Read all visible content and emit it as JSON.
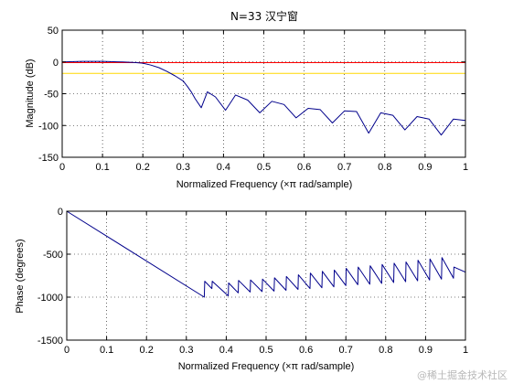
{
  "colors": {
    "response": "#00008b",
    "reference_red": "#ff0000",
    "reference_yellow": "#ffd700",
    "axes": "#000000",
    "grid": "#000000",
    "background": "#ffffff"
  },
  "watermark": "@稀土掘金技术社区",
  "chart_data": [
    {
      "type": "line",
      "title": "N=33 汉宁窗",
      "xlabel": "Normalized Frequency  (×π rad/sample)",
      "ylabel": "Magnitude (dB)",
      "xlim": [
        0,
        1
      ],
      "ylim": [
        -150,
        50
      ],
      "xticks": [
        0,
        0.1,
        0.2,
        0.3,
        0.4,
        0.5,
        0.6,
        0.7,
        0.8,
        0.9,
        1
      ],
      "xtick_labels": [
        "0",
        "0.1",
        "0.2",
        "0.3",
        "0.4",
        "0.5",
        "0.6",
        "0.7",
        "0.8",
        "0.9",
        "1"
      ],
      "yticks": [
        -150,
        -100,
        -50,
        0,
        50
      ],
      "ytick_labels": [
        "-150",
        "-100",
        "-50",
        "0",
        "50"
      ],
      "grid": true,
      "reference_lines": [
        {
          "y": -1,
          "color": "red"
        },
        {
          "y": -18,
          "color": "yellow"
        }
      ],
      "series": [
        {
          "x": [
            0,
            0.05,
            0.1,
            0.15,
            0.18,
            0.2,
            0.22,
            0.24,
            0.26,
            0.28,
            0.3,
            0.31,
            0.32,
            0.33,
            0.345,
            0.36,
            0.38,
            0.405,
            0.43,
            0.46,
            0.49,
            0.52,
            0.55,
            0.58,
            0.61,
            0.64,
            0.67,
            0.7,
            0.73,
            0.76,
            0.79,
            0.82,
            0.85,
            0.88,
            0.91,
            0.94,
            0.97,
            1.0
          ],
          "y": [
            0,
            1,
            1,
            0,
            -1,
            -2,
            -5,
            -9,
            -15,
            -22,
            -30,
            -38,
            -47,
            -58,
            -72,
            -47,
            -55,
            -76,
            -52,
            -60,
            -80,
            -62,
            -67,
            -88,
            -73,
            -75,
            -96,
            -77,
            -78,
            -112,
            -80,
            -84,
            -107,
            -86,
            -90,
            -115,
            -90,
            -92
          ]
        }
      ]
    },
    {
      "type": "line",
      "title": "",
      "xlabel": "Normalized Frequency  (×π rad/sample)",
      "ylabel": "Phase (degrees)",
      "xlim": [
        0,
        1
      ],
      "ylim": [
        -1500,
        0
      ],
      "xticks": [
        0,
        0.1,
        0.2,
        0.3,
        0.4,
        0.5,
        0.6,
        0.7,
        0.8,
        0.9,
        1
      ],
      "xtick_labels": [
        "0",
        "0.1",
        "0.2",
        "0.3",
        "0.4",
        "0.5",
        "0.6",
        "0.7",
        "0.8",
        "0.9",
        "1"
      ],
      "yticks": [
        -1500,
        -1000,
        -500,
        0
      ],
      "ytick_labels": [
        "-1500",
        "-1000",
        "-500",
        "0"
      ],
      "grid": true,
      "series": [
        {
          "x": [
            0,
            0.345,
            0.346,
            0.364,
            0.365,
            0.405,
            0.406,
            0.43,
            0.431,
            0.46,
            0.461,
            0.49,
            0.491,
            0.52,
            0.521,
            0.55,
            0.551,
            0.58,
            0.581,
            0.61,
            0.611,
            0.64,
            0.641,
            0.67,
            0.671,
            0.7,
            0.701,
            0.73,
            0.731,
            0.76,
            0.761,
            0.79,
            0.791,
            0.82,
            0.821,
            0.85,
            0.851,
            0.88,
            0.881,
            0.91,
            0.911,
            0.94,
            0.941,
            0.97,
            0.971,
            1.0
          ],
          "y": [
            0,
            -1000,
            -815,
            -900,
            -815,
            -985,
            -835,
            -950,
            -805,
            -940,
            -800,
            -935,
            -790,
            -930,
            -775,
            -920,
            -760,
            -910,
            -740,
            -900,
            -720,
            -890,
            -700,
            -880,
            -685,
            -865,
            -665,
            -855,
            -650,
            -850,
            -635,
            -840,
            -620,
            -830,
            -605,
            -820,
            -590,
            -810,
            -570,
            -800,
            -555,
            -790,
            -540,
            -780,
            -650,
            -710
          ]
        }
      ]
    }
  ]
}
